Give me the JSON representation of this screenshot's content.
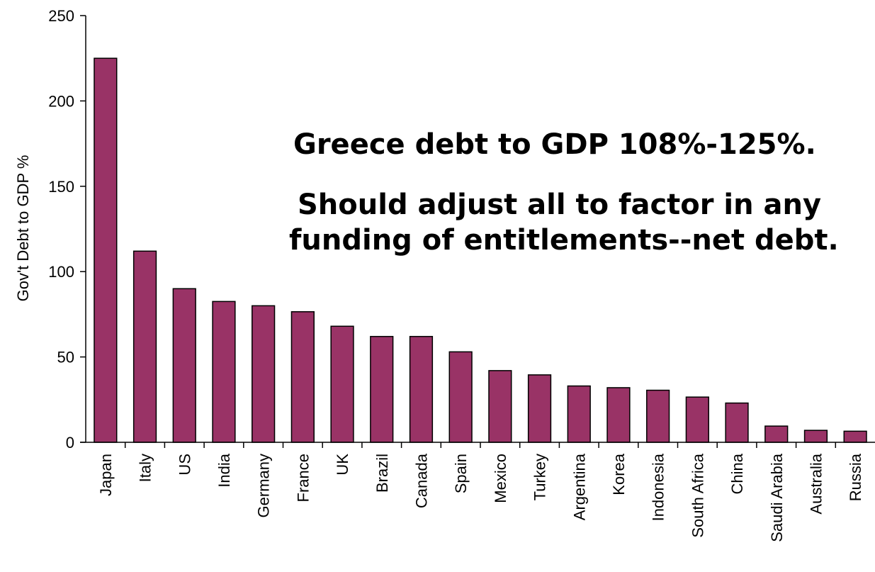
{
  "chart_data": {
    "type": "bar",
    "categories": [
      "Japan",
      "Italy",
      "US",
      "India",
      "Germany",
      "France",
      "UK",
      "Brazil",
      "Canada",
      "Spain",
      "Mexico",
      "Turkey",
      "Argentina",
      "Korea",
      "Indonesia",
      "South Africa",
      "China",
      "Saudi Arabia",
      "Australia",
      "Russia"
    ],
    "values": [
      225,
      112,
      90,
      82.5,
      80,
      76.5,
      68,
      62,
      62,
      53,
      42,
      39.5,
      33,
      32,
      30.5,
      26.5,
      23,
      9.5,
      7,
      6.5
    ],
    "xlabel": "",
    "ylabel": "Gov't Debt to GDP %",
    "ylim": [
      0,
      250
    ],
    "yticks": [
      0,
      50,
      100,
      150,
      200,
      250
    ],
    "bar_color": "#993366",
    "grid": false,
    "legend": "none"
  },
  "annotations": [
    "Greece debt to GDP 108%-125%.",
    "Should adjust all to factor in any",
    "funding of entitlements--net debt."
  ]
}
